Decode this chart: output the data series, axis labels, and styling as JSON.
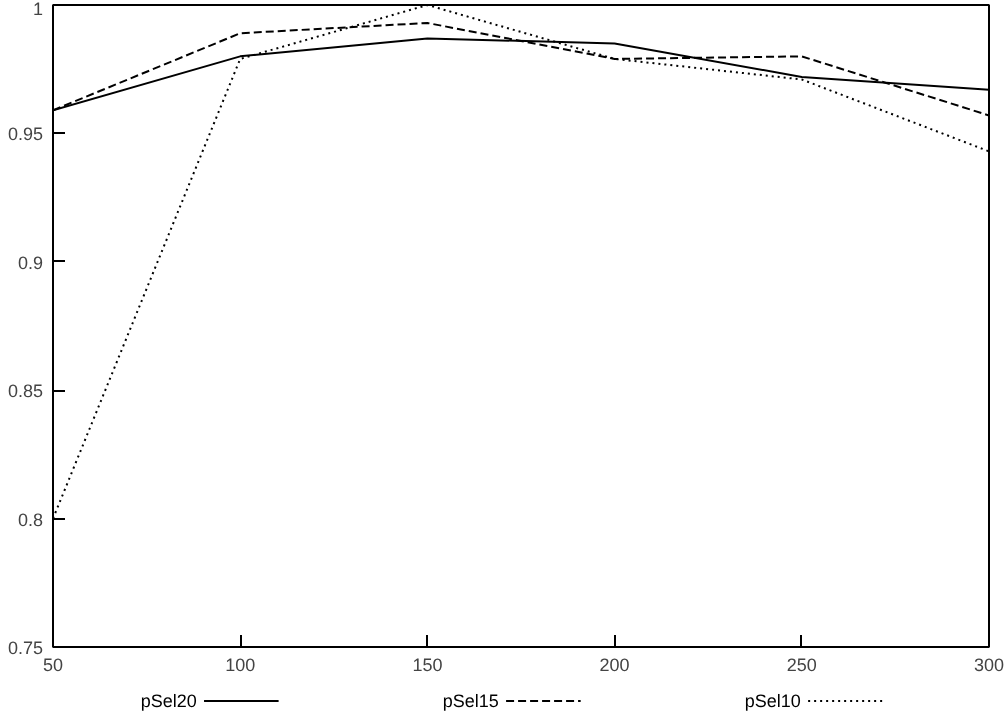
{
  "chart_data": {
    "type": "line",
    "x": [
      50,
      100,
      150,
      200,
      250,
      300
    ],
    "series": [
      {
        "name": "pSel20",
        "color": "#000000",
        "line_style": "solid",
        "values": [
          0.959,
          0.98,
          0.987,
          0.985,
          0.972,
          0.967
        ]
      },
      {
        "name": "pSel15",
        "color": "#000000",
        "line_style": "dashed",
        "values": [
          0.959,
          0.989,
          0.993,
          0.979,
          0.98,
          0.957
        ]
      },
      {
        "name": "pSel10",
        "color": "#000000",
        "line_style": "dotted",
        "values": [
          0.8,
          0.979,
          1.0,
          0.979,
          0.971,
          0.943
        ]
      }
    ],
    "xlim": [
      50,
      300
    ],
    "xticks": [
      50,
      100,
      150,
      200,
      250,
      300
    ],
    "ylim": [
      0.75,
      1
    ],
    "yticks": [
      0.75,
      0.8,
      0.85,
      0.9,
      0.95,
      1
    ],
    "grid": false,
    "legend": "bottom",
    "marker": "none"
  }
}
